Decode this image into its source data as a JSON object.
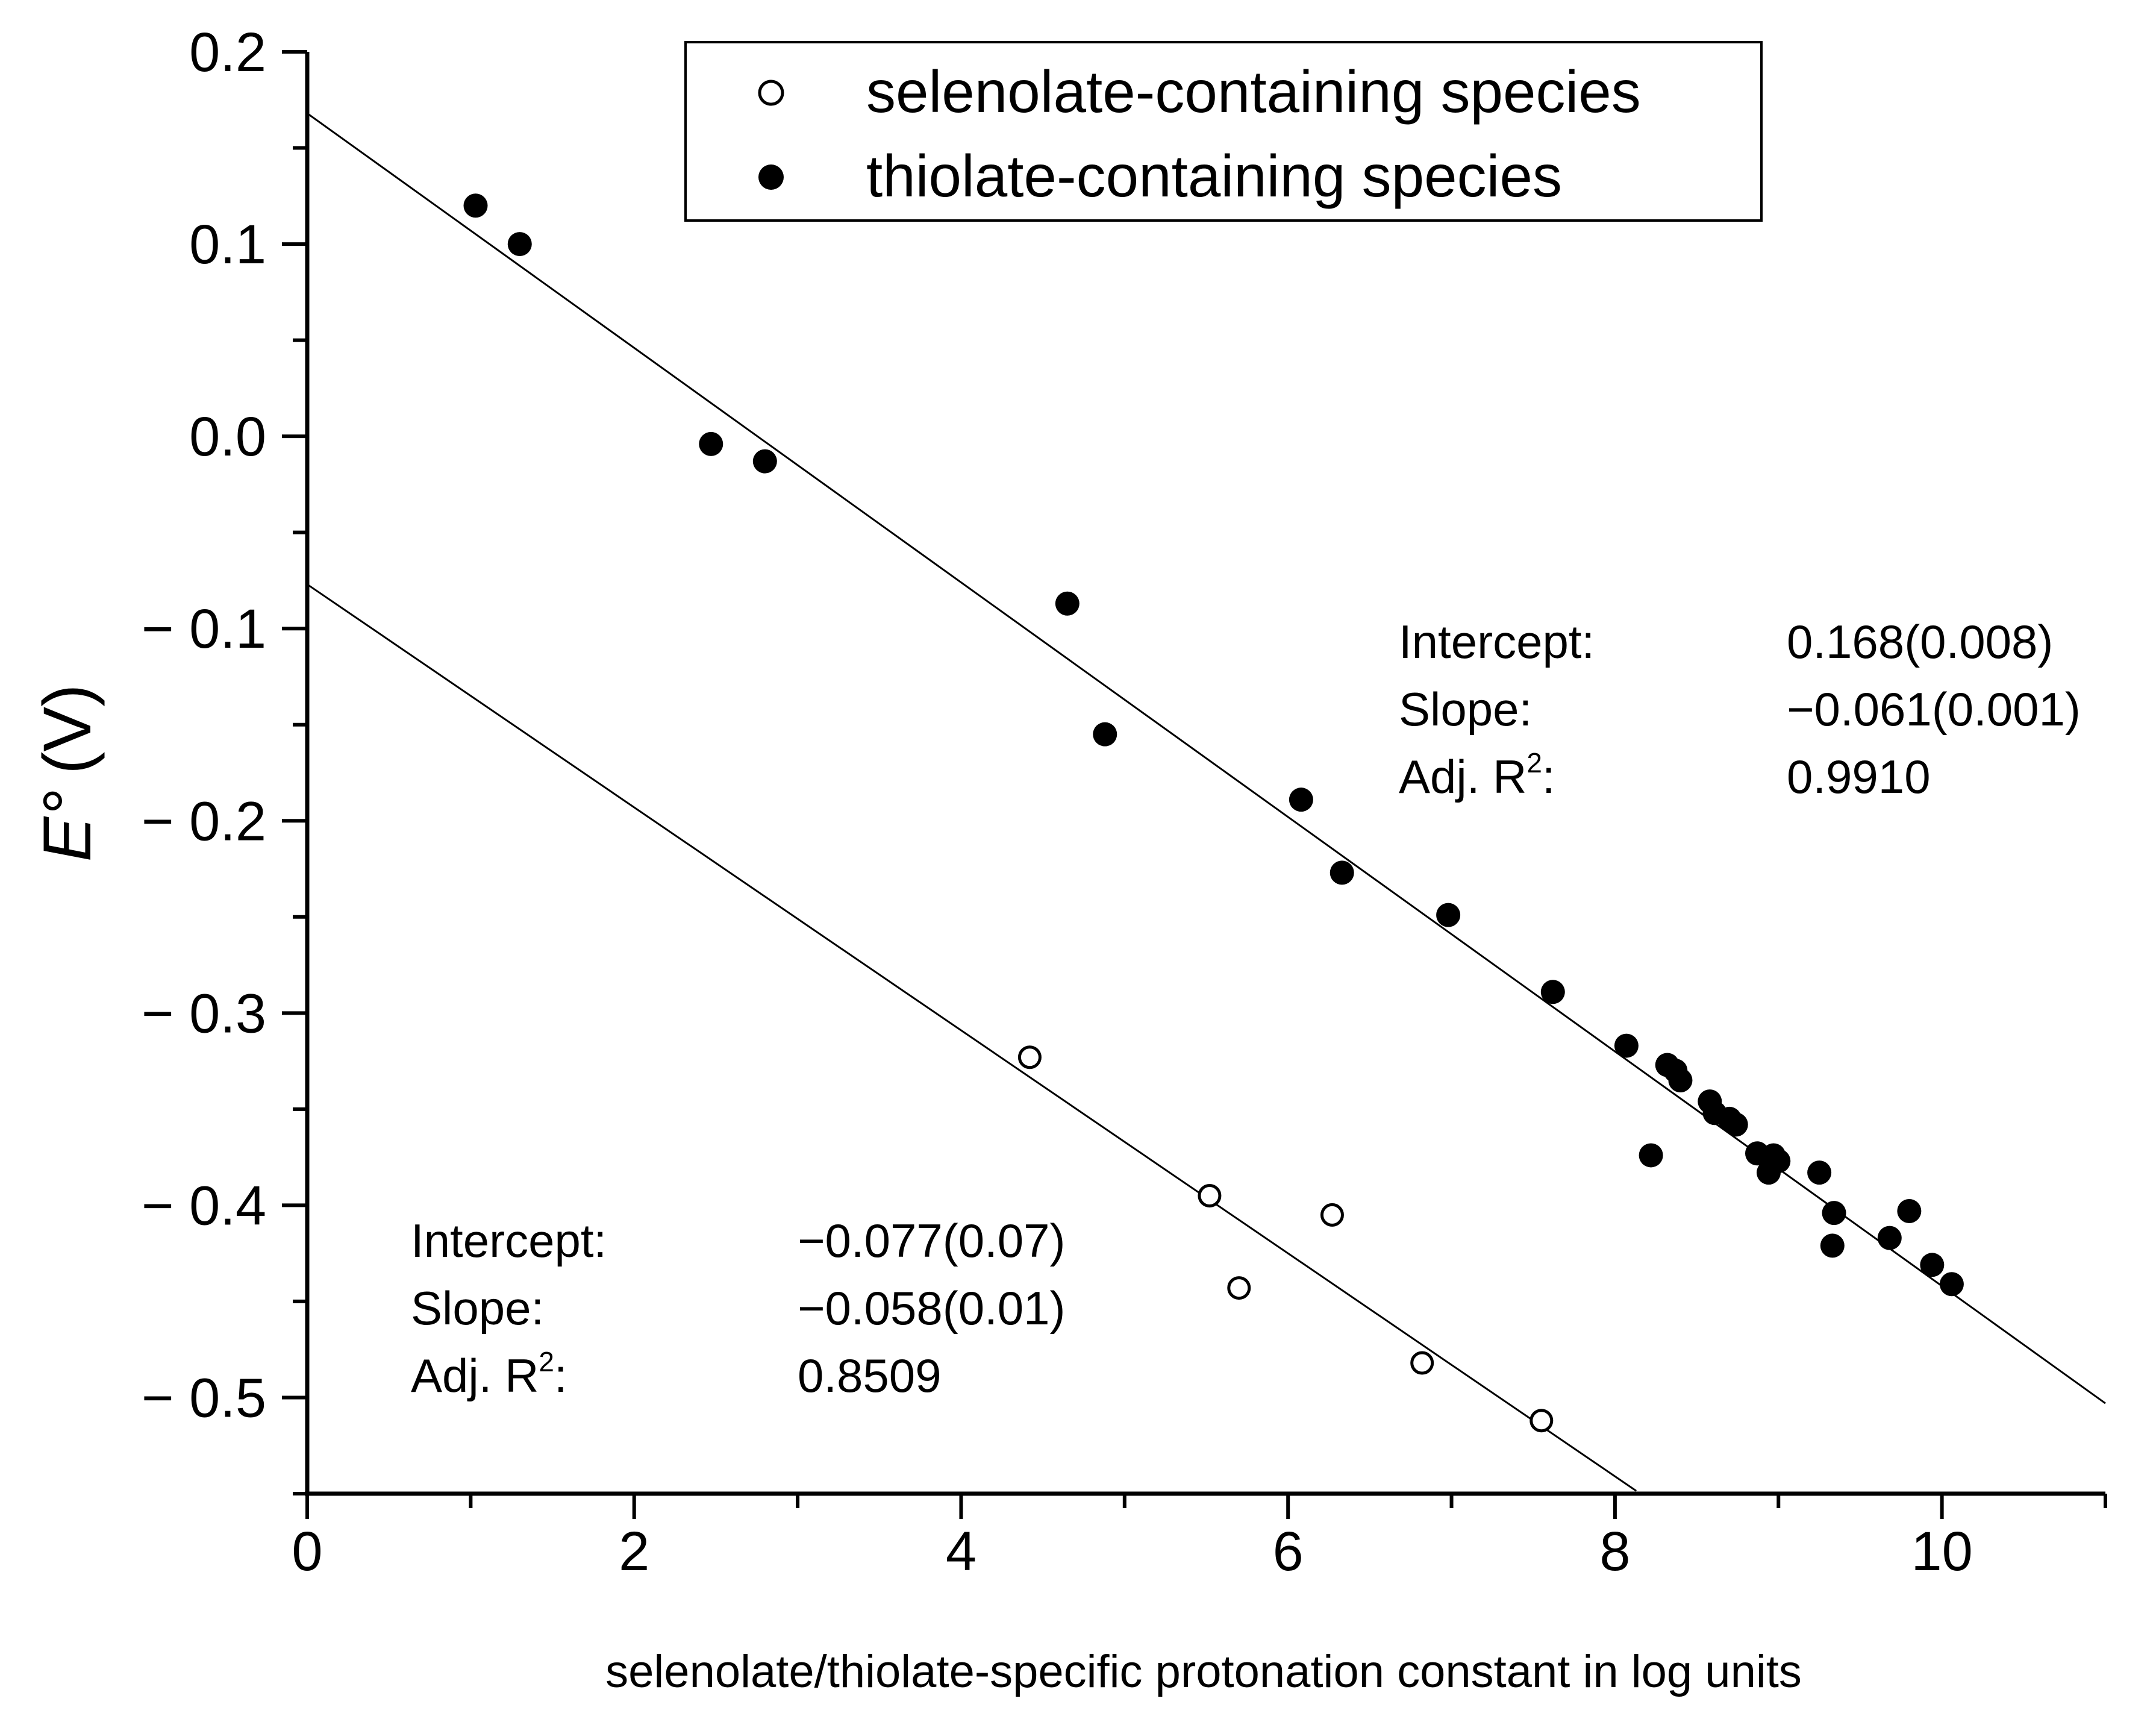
{
  "chart_data": {
    "type": "scatter",
    "title": "",
    "xlabel": "selenolate/thiolate-specific protonation constant in log units",
    "ylabel_main": "E°",
    "ylabel_unit": "(V)",
    "xlim": [
      0,
      11
    ],
    "ylim": [
      -0.55,
      0.2
    ],
    "x_ticks": [
      0,
      2,
      4,
      6,
      8,
      10
    ],
    "x_tick_labels": [
      "0",
      "2",
      "4",
      "6",
      "8",
      "10"
    ],
    "y_ticks": [
      0.2,
      0.1,
      0.0,
      -0.1,
      -0.2,
      -0.3,
      -0.4,
      -0.5
    ],
    "y_tick_labels": [
      "0.2",
      "0.1",
      "0.0",
      "− 0.1",
      "− 0.2",
      "− 0.3",
      "− 0.4",
      "− 0.5"
    ],
    "legend": [
      {
        "label": "selenolate-containing species",
        "marker": "open-circle"
      },
      {
        "label": "thiolate-containing species",
        "marker": "filled-circle"
      }
    ],
    "series": [
      {
        "name": "selenolate-containing species",
        "marker": "open-circle",
        "fit": {
          "intercept": -0.077,
          "slope": -0.058,
          "x_range": [
            0,
            8.13
          ]
        },
        "points": [
          [
            4.42,
            -0.323
          ],
          [
            5.52,
            -0.395
          ],
          [
            5.7,
            -0.443
          ],
          [
            6.27,
            -0.405
          ],
          [
            6.82,
            -0.482
          ],
          [
            7.55,
            -0.512
          ]
        ]
      },
      {
        "name": "thiolate-containing species",
        "marker": "filled-circle",
        "fit": {
          "intercept": 0.168,
          "slope": -0.061,
          "x_range": [
            0,
            11
          ]
        },
        "points": [
          [
            1.03,
            0.12
          ],
          [
            1.3,
            0.1
          ],
          [
            2.47,
            -0.004
          ],
          [
            2.8,
            -0.013
          ],
          [
            4.65,
            -0.087
          ],
          [
            4.88,
            -0.155
          ],
          [
            6.08,
            -0.189
          ],
          [
            6.33,
            -0.227
          ],
          [
            6.98,
            -0.249
          ],
          [
            7.62,
            -0.289
          ],
          [
            8.07,
            -0.317
          ],
          [
            8.22,
            -0.374
          ],
          [
            8.32,
            -0.327
          ],
          [
            8.37,
            -0.33
          ],
          [
            8.4,
            -0.335
          ],
          [
            8.58,
            -0.346
          ],
          [
            8.61,
            -0.352
          ],
          [
            8.7,
            -0.355
          ],
          [
            8.74,
            -0.358
          ],
          [
            8.87,
            -0.373
          ],
          [
            8.94,
            -0.383
          ],
          [
            8.97,
            -0.374
          ],
          [
            9.0,
            -0.377
          ],
          [
            9.25,
            -0.383
          ],
          [
            9.34,
            -0.404
          ],
          [
            9.33,
            -0.421
          ],
          [
            9.68,
            -0.417
          ],
          [
            9.8,
            -0.403
          ],
          [
            9.94,
            -0.431
          ],
          [
            10.06,
            -0.441
          ]
        ]
      }
    ],
    "annotations": {
      "thiolate_fit": {
        "intercept_label": "Intercept:",
        "intercept_value": "0.168(0.008)",
        "slope_label": "Slope:",
        "slope_value": "−0.061(0.001)",
        "r2_label": "Adj. R",
        "r2_sup": "2",
        "r2_colon": ":",
        "r2_value": "0.9910"
      },
      "selenolate_fit": {
        "intercept_label": "Intercept:",
        "intercept_value": "−0.077(0.07)",
        "slope_label": "Slope:",
        "slope_value": "−0.058(0.01)",
        "r2_label": "Adj. R",
        "r2_sup": "2",
        "r2_colon": ":",
        "r2_value": "0.8509"
      }
    }
  }
}
